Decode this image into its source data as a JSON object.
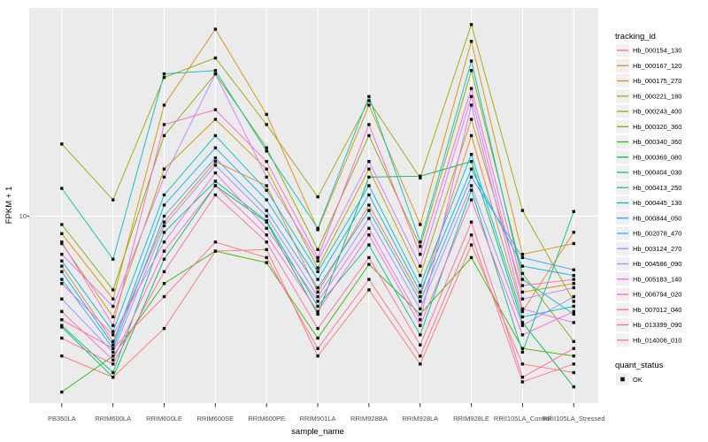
{
  "chart_data": {
    "type": "line",
    "title": "",
    "xlabel": "sample_name",
    "ylabel": "FPKM + 1",
    "y_scale": "log10",
    "y_tick_label": "10",
    "ylim": [
      2,
      60
    ],
    "grid": "on",
    "legend_position": "right",
    "legend_title": "tracking_id",
    "legend2_title": "quant_status",
    "quant_status_label": "OK",
    "marker": "black-square",
    "colors": {
      "panel_bg": "#EBEBEB",
      "grid": "#FFFFFF",
      "tick_label": "#4D4D4D",
      "axis_title": "#000000",
      "legend_key_bg": "#F0F0F0",
      "point": "#111111"
    },
    "categories": [
      "PB350LA",
      "RRIM600LA",
      "RRIM600LE",
      "RRIM600SE",
      "RRIM600PE",
      "RRIM901LA",
      "RRIM928BA",
      "RRIM928LA",
      "RRIM928LE",
      "RRII105LA_Control",
      "RRII105LA_Stressed"
    ],
    "series": [
      {
        "name": "Hb_000154_130",
        "color": "#F8766D",
        "values": [
          3.0,
          2.5,
          3.8,
          7.4,
          7.5,
          3.0,
          5.3,
          2.8,
          7.8,
          2.8,
          2.6
        ]
      },
      {
        "name": "Hb_000167_120",
        "color": "#EA8331",
        "values": [
          6.5,
          3.4,
          9.5,
          16,
          13,
          5.2,
          11,
          5.0,
          20,
          4.4,
          8.7
        ]
      },
      {
        "name": "Hb_000175_270",
        "color": "#D89000",
        "values": [
          8.6,
          4.9,
          26,
          50,
          24,
          8.9,
          26,
          9.3,
          45,
          7.2,
          7.9
        ]
      },
      {
        "name": "Hb_000221_180",
        "color": "#C09B00",
        "values": [
          7.9,
          4.2,
          15,
          23,
          15,
          6.4,
          15,
          6.0,
          23,
          5.2,
          5.6
        ]
      },
      {
        "name": "Hb_000243_400",
        "color": "#A3A500",
        "values": [
          18.6,
          11.5,
          33,
          39,
          22,
          11.8,
          27,
          13.9,
          52,
          10.5,
          4.8
        ]
      },
      {
        "name": "Hb_000320_360",
        "color": "#7CAE00",
        "values": [
          9.3,
          5.3,
          20,
          34,
          18,
          7.5,
          20,
          7.7,
          35,
          6.1,
          3.4
        ]
      },
      {
        "name": "Hb_000340_360",
        "color": "#39B600",
        "values": [
          2.2,
          3.0,
          5.6,
          7.4,
          6.7,
          3.5,
          6.6,
          4.3,
          7.0,
          3.2,
          3.0
        ]
      },
      {
        "name": "Hb_000369_080",
        "color": "#00BB4E",
        "values": [
          3.85,
          2.5,
          6.9,
          13,
          9.5,
          4.3,
          14,
          14.1,
          16,
          4.0,
          2.3
        ]
      },
      {
        "name": "Hb_000404_030",
        "color": "#00C087",
        "values": [
          3.9,
          2.6,
          8.7,
          13.5,
          9.6,
          4.6,
          7.8,
          3.6,
          12.5,
          3.1,
          10.4
        ]
      },
      {
        "name": "Hb_000413_250",
        "color": "#00C0B8",
        "values": [
          12.7,
          6.9,
          34,
          35,
          17.5,
          9.0,
          28,
          8.0,
          38,
          5.8,
          4.3
        ]
      },
      {
        "name": "Hb_000445_130",
        "color": "#00BCD8",
        "values": [
          6.8,
          3.7,
          12,
          20,
          12.5,
          6.2,
          13,
          5.5,
          17,
          4.2,
          4.6
        ]
      },
      {
        "name": "Hb_000844_050",
        "color": "#00B0F6",
        "values": [
          6.2,
          3.3,
          11,
          18,
          11.5,
          5.8,
          12,
          5.2,
          15,
          6.5,
          6.0
        ]
      },
      {
        "name": "Hb_002078_470",
        "color": "#35A2FF",
        "values": [
          5.8,
          3.2,
          10,
          16.5,
          10.5,
          5.4,
          10.5,
          4.8,
          14,
          7.0,
          6.3
        ]
      },
      {
        "name": "Hb_003124_270",
        "color": "#9590FF",
        "values": [
          4.9,
          3.1,
          9.2,
          15.5,
          10,
          5.0,
          9.8,
          4.5,
          13,
          3.9,
          5.0
        ]
      },
      {
        "name": "Hb_004586_090",
        "color": "#C77CFF",
        "values": [
          7.2,
          4.6,
          14,
          34,
          14,
          6.8,
          16,
          6.5,
          28,
          4.9,
          5.4
        ]
      },
      {
        "name": "Hb_005183_140",
        "color": "#E76BF3",
        "values": [
          5.6,
          3.6,
          8.0,
          14.5,
          9.0,
          4.8,
          9.0,
          4.1,
          26,
          4.5,
          4.0
        ]
      },
      {
        "name": "Hb_006794_020",
        "color": "#FA62DB",
        "values": [
          4.4,
          2.9,
          7.4,
          13,
          8.5,
          4.4,
          8.5,
          3.9,
          11.5,
          3.6,
          4.4
        ]
      },
      {
        "name": "Hb_007012_040",
        "color": "#FF61C3",
        "values": [
          8.0,
          3.9,
          22,
          25,
          16,
          7.0,
          22,
          7.2,
          30,
          5.5,
          5.8
        ]
      },
      {
        "name": "Hb_013399_090",
        "color": "#FF67A4",
        "values": [
          3.5,
          2.8,
          6.2,
          12,
          8.0,
          3.8,
          7.0,
          3.3,
          9.5,
          2.5,
          3.2
        ]
      },
      {
        "name": "Hb_014006_010",
        "color": "#FF6C90",
        "values": [
          4.1,
          3.2,
          5.0,
          8.0,
          7.0,
          3.2,
          5.8,
          3.0,
          8.5,
          2.4,
          2.8
        ]
      }
    ]
  }
}
